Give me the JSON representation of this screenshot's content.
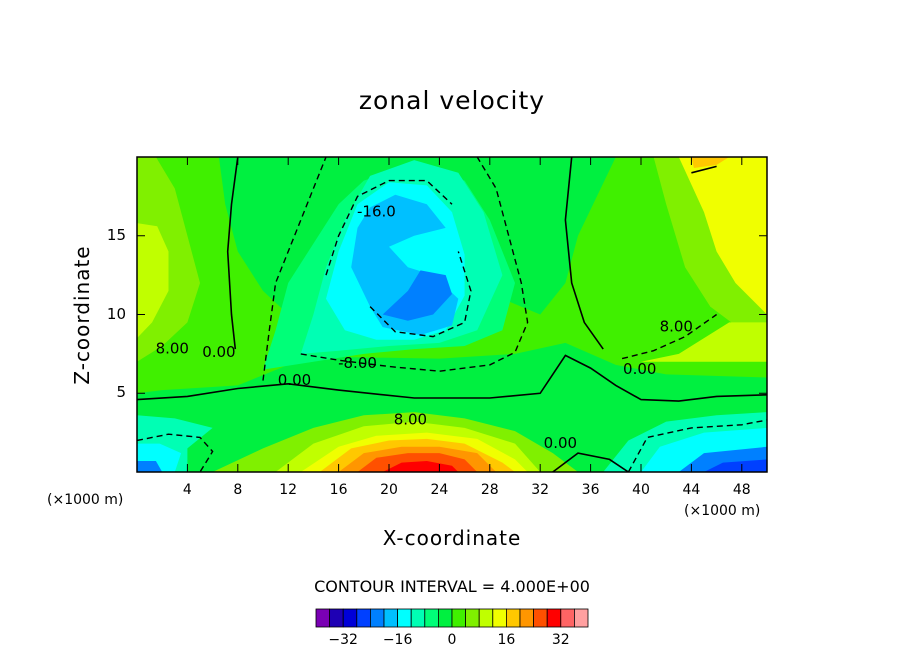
{
  "chart_data": {
    "type": "heatmap",
    "subtype": "filled contour",
    "title": "zonal velocity",
    "xlabel": "X-coordinate",
    "ylabel": "Z-coordinate",
    "x_unit_left": "(×1000 m)",
    "x_unit_right": "(×1000 m)",
    "x_ticks": [
      "4",
      "8",
      "12",
      "16",
      "20",
      "24",
      "28",
      "32",
      "36",
      "40",
      "44",
      "48"
    ],
    "x_tick_values": [
      4,
      8,
      12,
      16,
      20,
      24,
      28,
      32,
      36,
      40,
      44,
      48
    ],
    "y_ticks": [
      "5",
      "10",
      "15"
    ],
    "y_tick_values": [
      5,
      10,
      15
    ],
    "xlim": [
      0,
      50
    ],
    "ylim": [
      0,
      20
    ],
    "contour_interval_text": "CONTOUR INTERVAL = 4.000E+00",
    "contour_interval": 4.0,
    "contour_labels": [
      {
        "text": "-16.0",
        "x": 19.0,
        "z": 16.5
      },
      {
        "text": "8.00",
        "x": 2.8,
        "z": 7.8
      },
      {
        "text": "0.00",
        "x": 6.5,
        "z": 7.6
      },
      {
        "text": "-8.00",
        "x": 17.5,
        "z": 6.9
      },
      {
        "text": "0.00",
        "x": 12.5,
        "z": 5.8
      },
      {
        "text": "8.00",
        "x": 21.7,
        "z": 3.3
      },
      {
        "text": "0.00",
        "x": 33.6,
        "z": 1.8
      },
      {
        "text": "0.00",
        "x": 39.9,
        "z": 6.5
      },
      {
        "text": "8.00",
        "x": 42.8,
        "z": 9.2
      }
    ],
    "colorbar": {
      "tick_labels": [
        "−32",
        "−16",
        "0",
        "16",
        "32"
      ],
      "tick_values": [
        -32,
        -16,
        0,
        16,
        32
      ],
      "levels": [
        -36,
        -32,
        -28,
        -24,
        -20,
        -16,
        -12,
        -8,
        -4,
        0,
        4,
        8,
        12,
        16,
        20,
        24,
        28,
        32,
        36
      ],
      "colors": [
        "#7a00b4",
        "#1e00b4",
        "#0000d8",
        "#0040ff",
        "#0080ff",
        "#00c0ff",
        "#00ffff",
        "#00ffb4",
        "#00ff78",
        "#00f040",
        "#40f000",
        "#80f000",
        "#c0ff00",
        "#f0ff00",
        "#ffc800",
        "#ff9600",
        "#ff5000",
        "#ff0000",
        "#ff6464",
        "#ffa0a0"
      ]
    }
  }
}
